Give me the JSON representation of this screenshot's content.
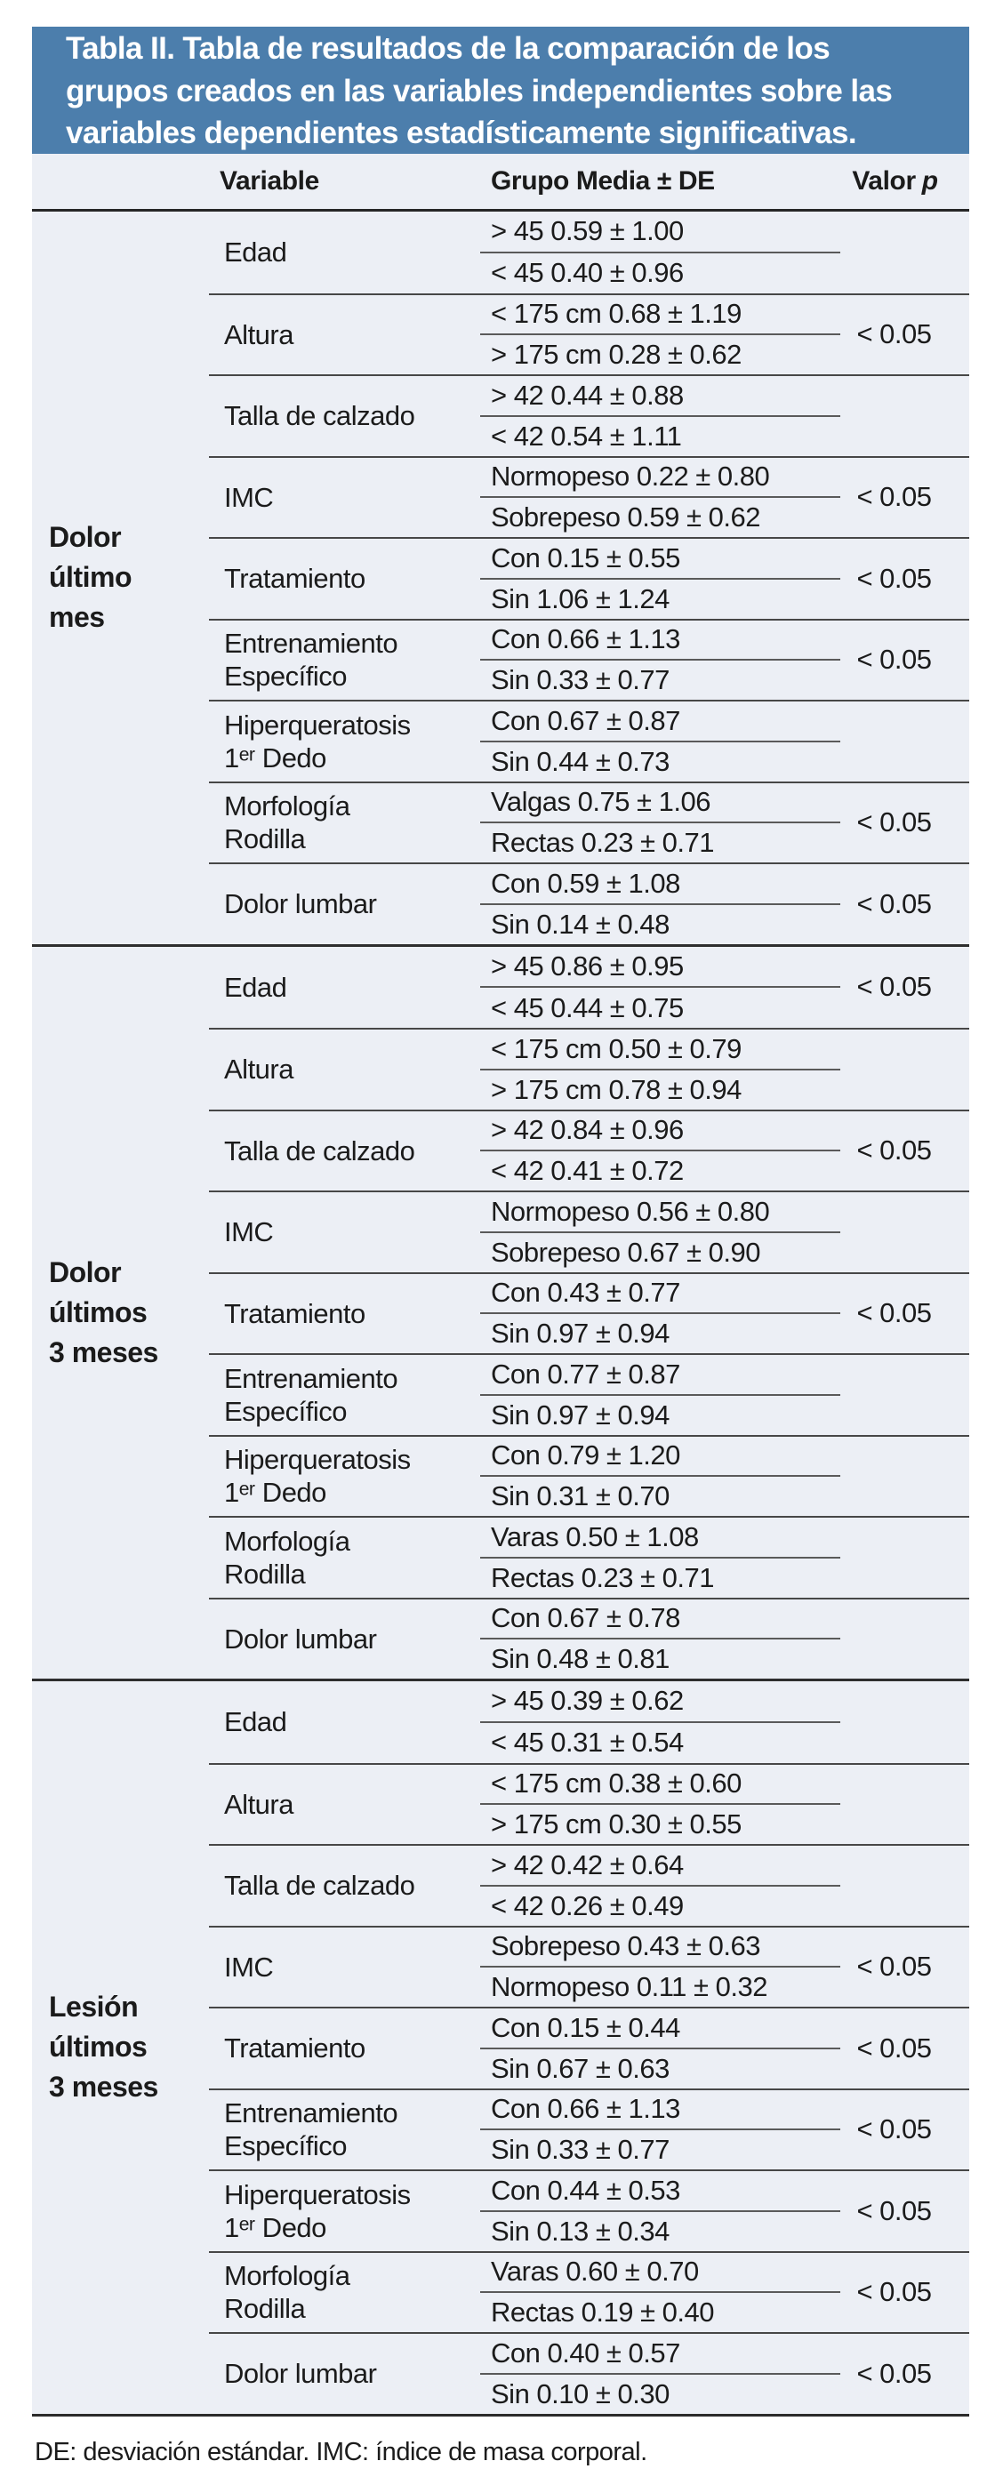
{
  "colors": {
    "header_bg": "#4C7EAC",
    "body_bg": "#ECEFF5",
    "text": "#1B1B1B"
  },
  "title": "Tabla II. Tabla de resultados de la comparación de los\ngrupos creados en las variables independientes sobre las\nvariables dependientes estadísticamente significativas.",
  "columns": {
    "variable": "Variable",
    "grupo": "Grupo Media ± DE",
    "valor_p_prefix": "Valor",
    "valor_p_italic": "p"
  },
  "footnote": "DE: desviación estándar. IMC: índice de masa corporal.",
  "groups": [
    {
      "label": "Dolor\núltimo\nmes",
      "rows": [
        {
          "variable": "Edad",
          "grupo1": "> 45 0.59 ± 1.00",
          "grupo2": "< 45 0.40 ± 0.96",
          "p": ""
        },
        {
          "variable": "Altura",
          "grupo1": "< 175 cm 0.68 ± 1.19",
          "grupo2": "> 175 cm 0.28 ± 0.62",
          "p": "< 0.05"
        },
        {
          "variable": "Talla de calzado",
          "grupo1": "> 42 0.44 ± 0.88",
          "grupo2": "< 42 0.54 ± 1.11",
          "p": ""
        },
        {
          "variable": "IMC",
          "grupo1": "Normopeso 0.22 ± 0.80",
          "grupo2": "Sobrepeso 0.59 ± 0.62",
          "p": "< 0.05"
        },
        {
          "variable": "Tratamiento",
          "grupo1": "Con 0.15 ± 0.55",
          "grupo2": "Sin 1.06 ± 1.24",
          "p": "< 0.05"
        },
        {
          "variable": "Entrenamiento\nEspecífico",
          "grupo1": "Con 0.66 ± 1.13",
          "grupo2": "Sin 0.33 ± 0.77",
          "p": "< 0.05"
        },
        {
          "variable": "Hiperqueratosis\n1ᵉʳ Dedo",
          "grupo1": "Con 0.67 ± 0.87",
          "grupo2": "Sin 0.44 ± 0.73",
          "p": ""
        },
        {
          "variable": "Morfología\nRodilla",
          "grupo1": "Valgas 0.75 ± 1.06",
          "grupo2": "Rectas 0.23 ± 0.71",
          "p": "< 0.05"
        },
        {
          "variable": "Dolor lumbar",
          "grupo1": "Con 0.59 ± 1.08",
          "grupo2": "Sin 0.14 ± 0.48",
          "p": "< 0.05"
        }
      ]
    },
    {
      "label": "Dolor\núltimos\n3 meses",
      "rows": [
        {
          "variable": "Edad",
          "grupo1": "> 45 0.86 ± 0.95",
          "grupo2": "< 45 0.44 ± 0.75",
          "p": "< 0.05"
        },
        {
          "variable": "Altura",
          "grupo1": "< 175 cm 0.50 ± 0.79",
          "grupo2": "> 175 cm 0.78 ± 0.94",
          "p": ""
        },
        {
          "variable": "Talla de calzado",
          "grupo1": "> 42 0.84 ± 0.96",
          "grupo2": "< 42 0.41 ± 0.72",
          "p": "< 0.05"
        },
        {
          "variable": "IMC",
          "grupo1": "Normopeso 0.56 ± 0.80",
          "grupo2": "Sobrepeso 0.67 ± 0.90",
          "p": ""
        },
        {
          "variable": "Tratamiento",
          "grupo1": "Con 0.43 ± 0.77",
          "grupo2": "Sin 0.97 ± 0.94",
          "p": "< 0.05"
        },
        {
          "variable": "Entrenamiento\nEspecífico",
          "grupo1": "Con 0.77 ± 0.87",
          "grupo2": "Sin 0.97 ± 0.94",
          "p": ""
        },
        {
          "variable": "Hiperqueratosis\n1ᵉʳ Dedo",
          "grupo1": "Con 0.79 ± 1.20",
          "grupo2": "Sin 0.31 ± 0.70",
          "p": ""
        },
        {
          "variable": "Morfología\nRodilla",
          "grupo1": "Varas 0.50 ± 1.08",
          "grupo2": "Rectas 0.23 ± 0.71",
          "p": ""
        },
        {
          "variable": "Dolor lumbar",
          "grupo1": "Con 0.67 ± 0.78",
          "grupo2": "Sin 0.48 ± 0.81",
          "p": ""
        }
      ]
    },
    {
      "label": "Lesión\núltimos\n3 meses",
      "rows": [
        {
          "variable": "Edad",
          "grupo1": "> 45 0.39 ± 0.62",
          "grupo2": "< 45 0.31 ± 0.54",
          "p": ""
        },
        {
          "variable": "Altura",
          "grupo1": "< 175 cm 0.38 ± 0.60",
          "grupo2": "> 175 cm 0.30 ± 0.55",
          "p": ""
        },
        {
          "variable": "Talla de calzado",
          "grupo1": "> 42 0.42 ± 0.64",
          "grupo2": "< 42 0.26 ± 0.49",
          "p": ""
        },
        {
          "variable": "IMC",
          "grupo1": "Sobrepeso 0.43 ± 0.63",
          "grupo2": "Normopeso 0.11 ± 0.32",
          "p": "< 0.05"
        },
        {
          "variable": "Tratamiento",
          "grupo1": "Con 0.15 ± 0.44",
          "grupo2": "Sin 0.67 ± 0.63",
          "p": "< 0.05"
        },
        {
          "variable": "Entrenamiento\nEspecífico",
          "grupo1": "Con 0.66 ± 1.13",
          "grupo2": "Sin 0.33 ± 0.77",
          "p": "< 0.05"
        },
        {
          "variable": "Hiperqueratosis\n1ᵉʳ Dedo",
          "grupo1": "Con 0.44 ± 0.53",
          "grupo2": "Sin 0.13 ± 0.34",
          "p": "< 0.05"
        },
        {
          "variable": "Morfología\nRodilla",
          "grupo1": "Varas 0.60 ± 0.70",
          "grupo2": "Rectas 0.19 ± 0.40",
          "p": "< 0.05"
        },
        {
          "variable": "Dolor lumbar",
          "grupo1": "Con 0.40 ± 0.57",
          "grupo2": "Sin 0.10 ± 0.30",
          "p": "< 0.05"
        }
      ]
    }
  ]
}
